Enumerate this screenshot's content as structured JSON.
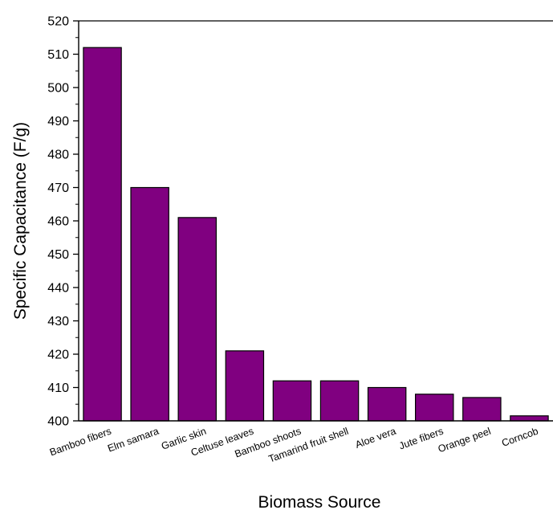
{
  "chart_data": {
    "type": "bar",
    "categories": [
      "Bamboo fibers",
      "Elm samara",
      "Garlic skin",
      "Celtuse leaves",
      "Bamboo shoots",
      "Tamarind fruit shell",
      "Aloe vera",
      "Jute fibers",
      "Orange peel",
      "Corncob"
    ],
    "values": [
      512,
      470,
      461,
      421,
      412,
      412,
      410,
      408,
      407,
      401.5
    ],
    "xlabel": "Biomass Source",
    "ylabel": "Specific Capacitance (F/g)",
    "ylim": [
      400,
      520
    ],
    "yticks": [
      400,
      410,
      420,
      430,
      440,
      450,
      460,
      470,
      480,
      490,
      500,
      510,
      520
    ],
    "grid": false,
    "colors": {
      "bar_fill": "#800080",
      "bar_stroke": "#000000"
    }
  }
}
